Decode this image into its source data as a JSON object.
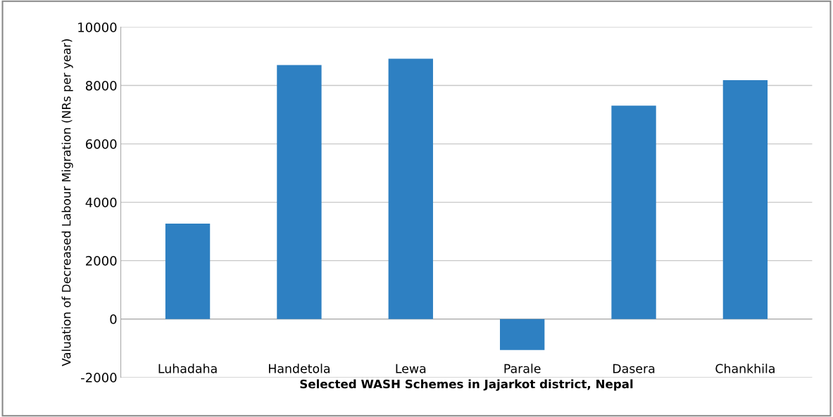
{
  "chart_data": {
    "type": "bar",
    "xlabel": "Selected WASH Schemes in Jajarkot district, Nepal",
    "ylabel": "Valuation of Decreased Labour Migration (NRs per year)",
    "categories": [
      "Luhadaha",
      "Handetola",
      "Lewa",
      "Parale",
      "Dasera",
      "Chankhila"
    ],
    "values": [
      3270,
      8700,
      8920,
      -1060,
      7310,
      8180
    ],
    "color": "#2e80c2",
    "ylim": [
      -2000,
      10000
    ],
    "yticks": [
      -2000,
      0,
      2000,
      4000,
      6000,
      8000,
      10000
    ],
    "grid": "y",
    "legend": false
  }
}
